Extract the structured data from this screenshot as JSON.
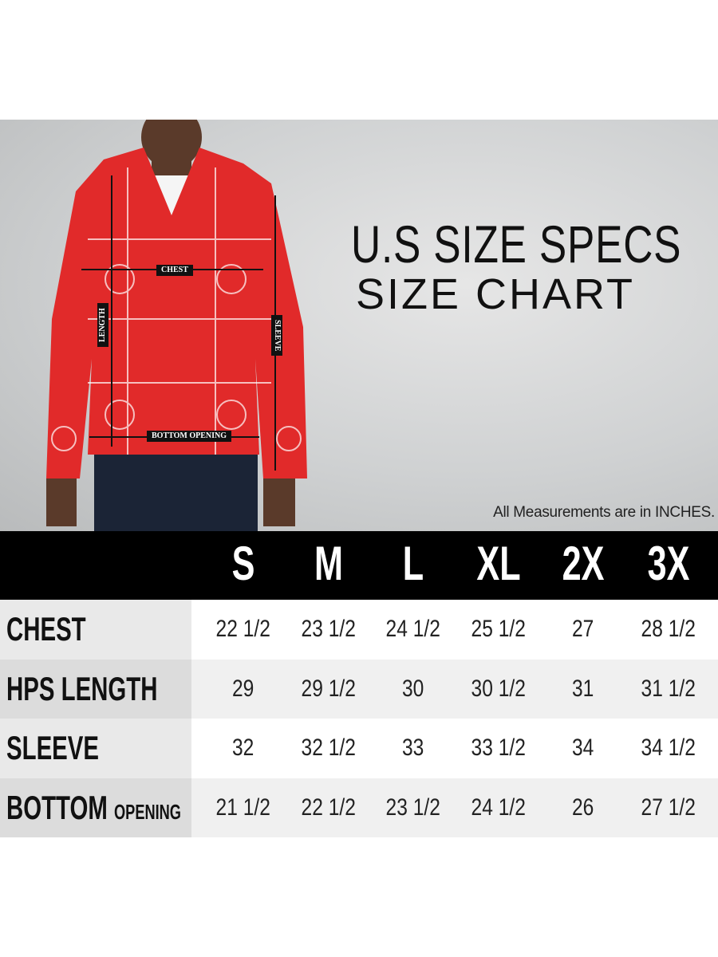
{
  "title_line1": "U.S SIZE SPECS",
  "title_line2": "SIZE CHART",
  "note": "All Measurements are in INCHES.",
  "diagram_labels": {
    "chest": "CHEST",
    "length": "LENGTH",
    "sleeve": "SLEEVE",
    "bottom": "BOTTOM OPENING"
  },
  "colors": {
    "jacket": "#e12a2a",
    "header_bg": "#000000"
  },
  "chart_data": {
    "type": "table",
    "unit": "INCHES",
    "columns": [
      "S",
      "M",
      "L",
      "XL",
      "2X",
      "3X"
    ],
    "rows": [
      {
        "label": "CHEST",
        "label_small": "",
        "values": [
          "22 1/2",
          "23 1/2",
          "24 1/2",
          "25 1/2",
          "27",
          "28 1/2"
        ]
      },
      {
        "label": "HPS LENGTH",
        "label_small": "",
        "values": [
          "29",
          "29 1/2",
          "30",
          "30 1/2",
          "31",
          "31 1/2"
        ]
      },
      {
        "label": "SLEEVE",
        "label_small": "",
        "values": [
          "32",
          "32 1/2",
          "33",
          "33 1/2",
          "34",
          "34 1/2"
        ]
      },
      {
        "label": "BOTTOM",
        "label_small": "OPENING",
        "values": [
          "21 1/2",
          "22 1/2",
          "23 1/2",
          "24 1/2",
          "26",
          "27 1/2"
        ]
      }
    ]
  }
}
